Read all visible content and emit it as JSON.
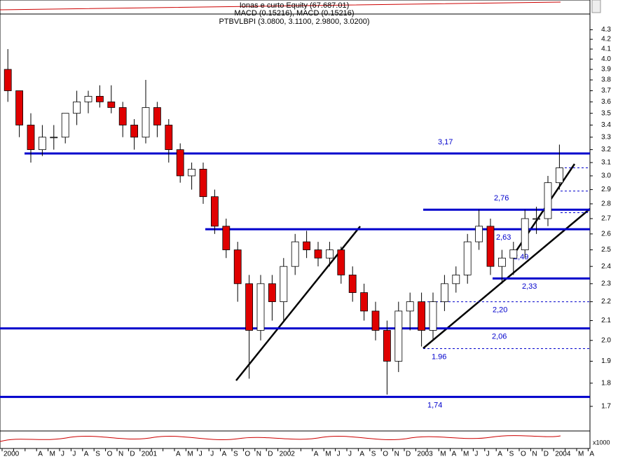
{
  "chart_data": {
    "type": "candlestick",
    "title": "Ionas e curto Equity (67.687.01)",
    "subtitle": "MACD (0.15216), MACD (0.15216)",
    "series_label": "PTBVLBPI (3.0800, 3.1100, 2.9800, 3.0200)",
    "volume_unit": "x1000",
    "log_scale": true,
    "up_color": "#ffffff",
    "down_color": "#e00000",
    "level_color": "#0000cc",
    "categories": [
      "2000",
      null,
      null,
      "A",
      "M",
      "J",
      "J",
      "A",
      "S",
      "O",
      "N",
      "D",
      "2001",
      null,
      null,
      "A",
      "M",
      "J",
      "J",
      "A",
      "S",
      "O",
      "N",
      "D",
      "2002",
      null,
      null,
      "A",
      "M",
      "J",
      "J",
      "A",
      "S",
      "O",
      "N",
      "D",
      "2003",
      null,
      "M",
      "A",
      "M",
      "J",
      "J",
      "A",
      "S",
      "O",
      "N",
      "D",
      "2004",
      null,
      "M",
      "A"
    ],
    "open": [
      3.9,
      3.7,
      3.4,
      3.2,
      3.3,
      3.3,
      3.5,
      3.6,
      3.65,
      3.6,
      3.55,
      3.4,
      3.3,
      3.55,
      3.4,
      3.2,
      3.0,
      3.05,
      2.85,
      2.65,
      2.5,
      2.3,
      2.05,
      2.3,
      2.2,
      2.4,
      2.55,
      2.5,
      2.45,
      2.5,
      2.35,
      2.25,
      2.15,
      2.05,
      1.9,
      2.15,
      2.2,
      2.05,
      2.2,
      2.3,
      2.35,
      2.55,
      2.65,
      2.4,
      2.45,
      2.5,
      2.7,
      2.7,
      2.95,
      null,
      null,
      null
    ],
    "high": [
      4.1,
      3.7,
      3.5,
      3.4,
      3.4,
      3.5,
      3.7,
      3.7,
      3.75,
      3.75,
      3.6,
      3.45,
      3.8,
      3.6,
      3.45,
      3.25,
      3.1,
      3.1,
      2.9,
      2.7,
      2.55,
      2.35,
      2.35,
      2.35,
      2.45,
      2.6,
      2.62,
      2.55,
      2.55,
      2.52,
      2.4,
      2.3,
      2.2,
      2.1,
      2.2,
      2.25,
      2.25,
      2.25,
      2.35,
      2.4,
      2.6,
      2.76,
      2.7,
      2.5,
      2.55,
      2.76,
      2.78,
      3.0,
      3.24,
      null,
      null,
      null
    ],
    "low": [
      3.6,
      3.3,
      3.1,
      3.15,
      3.2,
      3.25,
      3.4,
      3.5,
      3.55,
      3.5,
      3.3,
      3.2,
      3.25,
      3.3,
      3.1,
      2.95,
      2.9,
      2.8,
      2.6,
      2.45,
      2.2,
      1.82,
      2.0,
      2.1,
      2.1,
      2.35,
      2.45,
      2.4,
      2.4,
      2.3,
      2.2,
      2.1,
      2.0,
      1.75,
      1.85,
      2.05,
      1.97,
      2.0,
      2.15,
      2.25,
      2.3,
      2.5,
      2.35,
      2.3,
      2.35,
      2.45,
      2.6,
      2.65,
      2.9,
      null,
      null,
      null
    ],
    "close": [
      3.7,
      3.4,
      3.2,
      3.3,
      3.3,
      3.5,
      3.6,
      3.65,
      3.6,
      3.55,
      3.4,
      3.3,
      3.55,
      3.4,
      3.2,
      3.0,
      3.05,
      2.85,
      2.65,
      2.5,
      2.3,
      2.05,
      2.3,
      2.2,
      2.4,
      2.55,
      2.5,
      2.45,
      2.5,
      2.35,
      2.25,
      2.15,
      2.05,
      1.9,
      2.15,
      2.2,
      2.05,
      2.2,
      2.3,
      2.35,
      2.55,
      2.65,
      2.4,
      2.45,
      2.5,
      2.7,
      2.7,
      2.95,
      3.06,
      null,
      null,
      null
    ],
    "ylim": [
      1.6,
      4.47
    ],
    "yticks": [
      {
        "value": 1.7,
        "label": "1.7"
      },
      1.8,
      1.9,
      {
        "value": 2,
        "label": "2.0"
      },
      2.1,
      2.2,
      2.3,
      2.4,
      2.5,
      2.6,
      2.7,
      2.8,
      2.9,
      {
        "value": 3,
        "label": "3.0"
      },
      3.1,
      3.2,
      3.3,
      3.4,
      3.5,
      3.6,
      3.7,
      3.8,
      3.9,
      {
        "value": 4,
        "label": "4.0"
      },
      4.1,
      4.2,
      4.3
    ],
    "levels": [
      {
        "value": 3.17,
        "label": "3,17",
        "style": "solid"
      },
      {
        "value": 2.76,
        "label": "2,76",
        "style": "solid"
      },
      {
        "value": 2.63,
        "label": "2,63",
        "style": "solid"
      },
      {
        "value": 2.49,
        "label": "2,49",
        "style": "none"
      },
      {
        "value": 2.33,
        "label": "2,33",
        "style": "solid"
      },
      {
        "value": 2.2,
        "label": "2,20",
        "style": "dashed"
      },
      {
        "value": 2.06,
        "label": "2,06",
        "style": "solid"
      },
      {
        "value": 1.96,
        "label": "1.96",
        "style": "dashed"
      },
      {
        "value": 1.74,
        "label": "1,74",
        "style": "solid"
      }
    ],
    "dashed_levels": [
      3.06,
      2.89,
      2.74
    ]
  }
}
